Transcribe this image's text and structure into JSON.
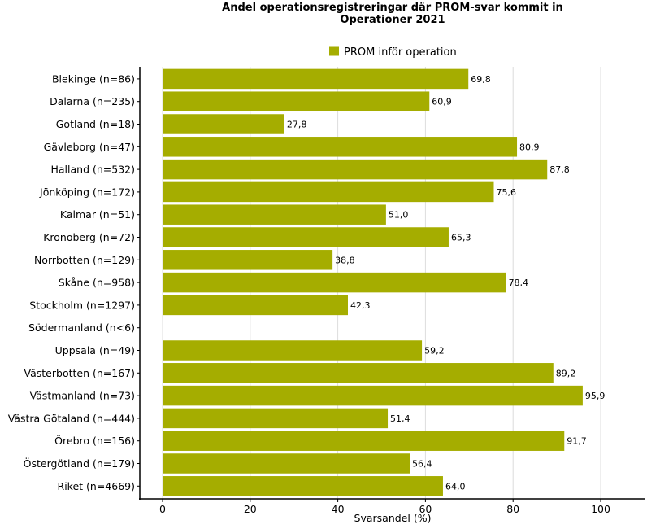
{
  "chart_data": {
    "type": "bar",
    "orientation": "horizontal",
    "title_line1": "Andel operationsregistreringar där PROM-svar kommit in",
    "title_line2": "Operationer 2021",
    "xlabel": "Svarsandel (%)",
    "ylabel": "",
    "xlim": [
      -5,
      110
    ],
    "xticks": [
      0,
      20,
      40,
      60,
      80,
      100
    ],
    "grid": true,
    "legend_position": "top",
    "series": [
      {
        "name": "PROM inför operation",
        "color": "#a5ad00"
      }
    ],
    "categories": [
      "Blekinge (n=86)",
      "Dalarna (n=235)",
      "Gotland (n=18)",
      "Gävleborg (n=47)",
      "Halland (n=532)",
      "Jönköping (n=172)",
      "Kalmar (n=51)",
      "Kronoberg (n=72)",
      "Norrbotten (n=129)",
      "Skåne (n=958)",
      "Stockholm (n=1297)",
      "Södermanland (n<6)",
      "Uppsala (n=49)",
      "Västerbotten (n=167)",
      "Västmanland (n=73)",
      "Västra Götaland (n=444)",
      "Örebro (n=156)",
      "Östergötland (n=179)",
      "Riket (n=4669)"
    ],
    "values": [
      69.8,
      60.9,
      27.8,
      80.9,
      87.8,
      75.6,
      51.0,
      65.3,
      38.8,
      78.4,
      42.3,
      null,
      59.2,
      89.2,
      95.9,
      51.4,
      91.7,
      56.4,
      64.0
    ],
    "value_labels": [
      "69,8",
      "60,9",
      "27,8",
      "80,9",
      "87,8",
      "75,6",
      "51,0",
      "65,3",
      "38,8",
      "78,4",
      "42,3",
      "",
      "59,2",
      "89,2",
      "95,9",
      "51,4",
      "91,7",
      "56,4",
      "64,0"
    ]
  }
}
